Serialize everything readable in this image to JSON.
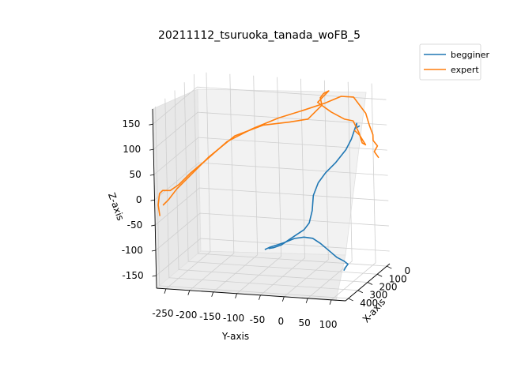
{
  "chart_data": {
    "type": "line",
    "title": "20211112_tsuruoka_tanada_woFB_5",
    "xlabel": "X-axis",
    "ylabel": "Y-axis",
    "zlabel": "Z-axis",
    "legend_position": "top-right (outside axes)",
    "grid": true,
    "xlim": [
      -30,
      430
    ],
    "ylim": [
      -270,
      130
    ],
    "zlim": [
      -175,
      180
    ],
    "x_ticks": [
      "0",
      "100",
      "200",
      "300",
      "400"
    ],
    "y_ticks": [
      "-250",
      "-200",
      "-150",
      "-100",
      "-50",
      "0",
      "50",
      "100"
    ],
    "z_ticks": [
      "150",
      "100",
      "50",
      "0",
      "-50",
      "-100",
      "-150"
    ],
    "series": [
      {
        "name": "begginer",
        "color": "#1f77b4",
        "points": [
          [
            120,
            -95,
            -135
          ],
          [
            118,
            -85,
            -133
          ],
          [
            110,
            -70,
            -128
          ],
          [
            100,
            -55,
            -118
          ],
          [
            95,
            -40,
            -108
          ],
          [
            90,
            -25,
            -98
          ],
          [
            85,
            -15,
            -85
          ],
          [
            85,
            -8,
            -60
          ],
          [
            85,
            -5,
            -30
          ],
          [
            80,
            5,
            -5
          ],
          [
            75,
            20,
            15
          ],
          [
            65,
            40,
            35
          ],
          [
            55,
            60,
            60
          ],
          [
            45,
            70,
            80
          ],
          [
            40,
            75,
            95
          ],
          [
            35,
            80,
            110
          ],
          [
            40,
            80,
            102
          ],
          [
            30,
            85,
            105
          ]
        ],
        "points_b": [
          [
            200,
            80,
            -155
          ],
          [
            190,
            82,
            -150
          ],
          [
            180,
            85,
            -145
          ],
          [
            175,
            75,
            -140
          ],
          [
            170,
            60,
            -135
          ],
          [
            155,
            40,
            -125
          ],
          [
            140,
            20,
            -115
          ],
          [
            125,
            0,
            -108
          ],
          [
            118,
            -20,
            -108
          ],
          [
            118,
            -40,
            -112
          ],
          [
            125,
            -60,
            -120
          ],
          [
            130,
            -75,
            -125
          ],
          [
            135,
            -90,
            -130
          ],
          [
            135,
            -100,
            -135
          ]
        ]
      },
      {
        "name": "expert",
        "color": "#ff7f0e",
        "points": [
          [
            380,
            -270,
            -40
          ],
          [
            370,
            -275,
            -20
          ],
          [
            355,
            -275,
            0
          ],
          [
            345,
            -270,
            5
          ],
          [
            340,
            -255,
            5
          ],
          [
            320,
            -240,
            15
          ],
          [
            300,
            -220,
            35
          ],
          [
            280,
            -190,
            60
          ],
          [
            255,
            -150,
            95
          ],
          [
            230,
            -100,
            120
          ],
          [
            205,
            -50,
            140
          ],
          [
            180,
            0,
            155
          ],
          [
            160,
            40,
            168
          ],
          [
            140,
            70,
            180
          ],
          [
            110,
            90,
            175
          ],
          [
            85,
            110,
            140
          ],
          [
            75,
            115,
            115
          ],
          [
            65,
            120,
            95
          ],
          [
            55,
            118,
            82
          ],
          [
            45,
            125,
            70
          ],
          [
            55,
            120,
            60
          ],
          [
            35,
            125,
            45
          ]
        ],
        "points_b": [
          [
            370,
            -265,
            -20
          ],
          [
            360,
            -255,
            -10
          ],
          [
            345,
            -240,
            10
          ],
          [
            325,
            -215,
            35
          ],
          [
            300,
            -180,
            70
          ],
          [
            270,
            -130,
            110
          ],
          [
            240,
            -75,
            130
          ],
          [
            215,
            -25,
            135
          ],
          [
            195,
            10,
            140
          ],
          [
            170,
            35,
            165
          ],
          [
            160,
            30,
            178
          ],
          [
            150,
            35,
            185
          ],
          [
            145,
            45,
            190
          ],
          [
            140,
            20,
            165
          ],
          [
            125,
            45,
            145
          ],
          [
            110,
            70,
            130
          ],
          [
            95,
            85,
            125
          ],
          [
            85,
            95,
            100
          ],
          [
            80,
            100,
            80
          ],
          [
            70,
            105,
            75
          ],
          [
            80,
            95,
            95
          ],
          [
            85,
            85,
            105
          ]
        ]
      }
    ]
  }
}
